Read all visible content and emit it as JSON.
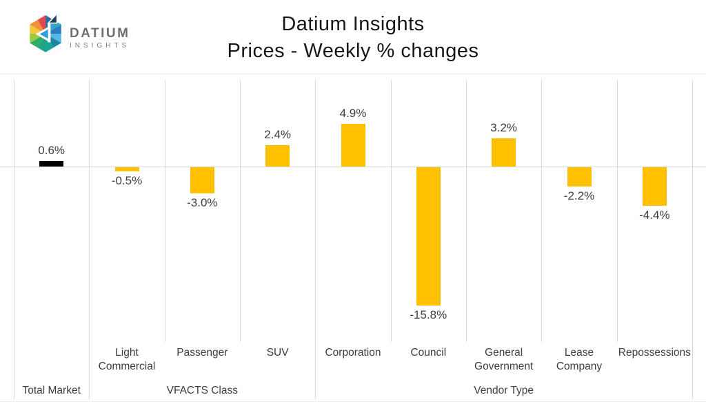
{
  "logo": {
    "brand": "DATIUM",
    "sub": "INSIGHTS"
  },
  "title": {
    "line1": "Datium Insights",
    "line2": "Prices - Weekly % changes"
  },
  "chart_data": {
    "type": "bar",
    "title": "Datium Insights Prices - Weekly % changes",
    "unit": "percent weekly change",
    "ylim": [
      -20,
      10
    ],
    "legend": "none",
    "gridlines": "vertical category separators, horizontal zero line",
    "groups": [
      {
        "label": "Total Market",
        "categories": [
          {
            "label": "",
            "value": 0.6,
            "display": "0.6%",
            "color": "#000000"
          }
        ]
      },
      {
        "label": "VFACTS Class",
        "categories": [
          {
            "label": "Light Commercial",
            "value": -0.5,
            "display": "-0.5%",
            "color": "#FFC000"
          },
          {
            "label": "Passenger",
            "value": -3.0,
            "display": "-3.0%",
            "color": "#FFC000"
          },
          {
            "label": "SUV",
            "value": 2.4,
            "display": "2.4%",
            "color": "#FFC000"
          }
        ]
      },
      {
        "label": "Vendor Type",
        "categories": [
          {
            "label": "Corporation",
            "value": 4.9,
            "display": "4.9%",
            "color": "#FFC000"
          },
          {
            "label": "Council",
            "value": -15.8,
            "display": "-15.8%",
            "color": "#FFC000"
          },
          {
            "label": "General Government",
            "value": 3.2,
            "display": "3.2%",
            "color": "#FFC000"
          },
          {
            "label": "Lease Company",
            "value": -2.2,
            "display": "-2.2%",
            "color": "#FFC000"
          },
          {
            "label": "Repossessions",
            "value": -4.4,
            "display": "-4.4%",
            "color": "#FFC000"
          }
        ]
      }
    ],
    "colors": {
      "bar_default": "#FFC000",
      "bar_total_market": "#000000",
      "gridline": "#D9D9D9",
      "text": "#3D3D3D"
    }
  }
}
